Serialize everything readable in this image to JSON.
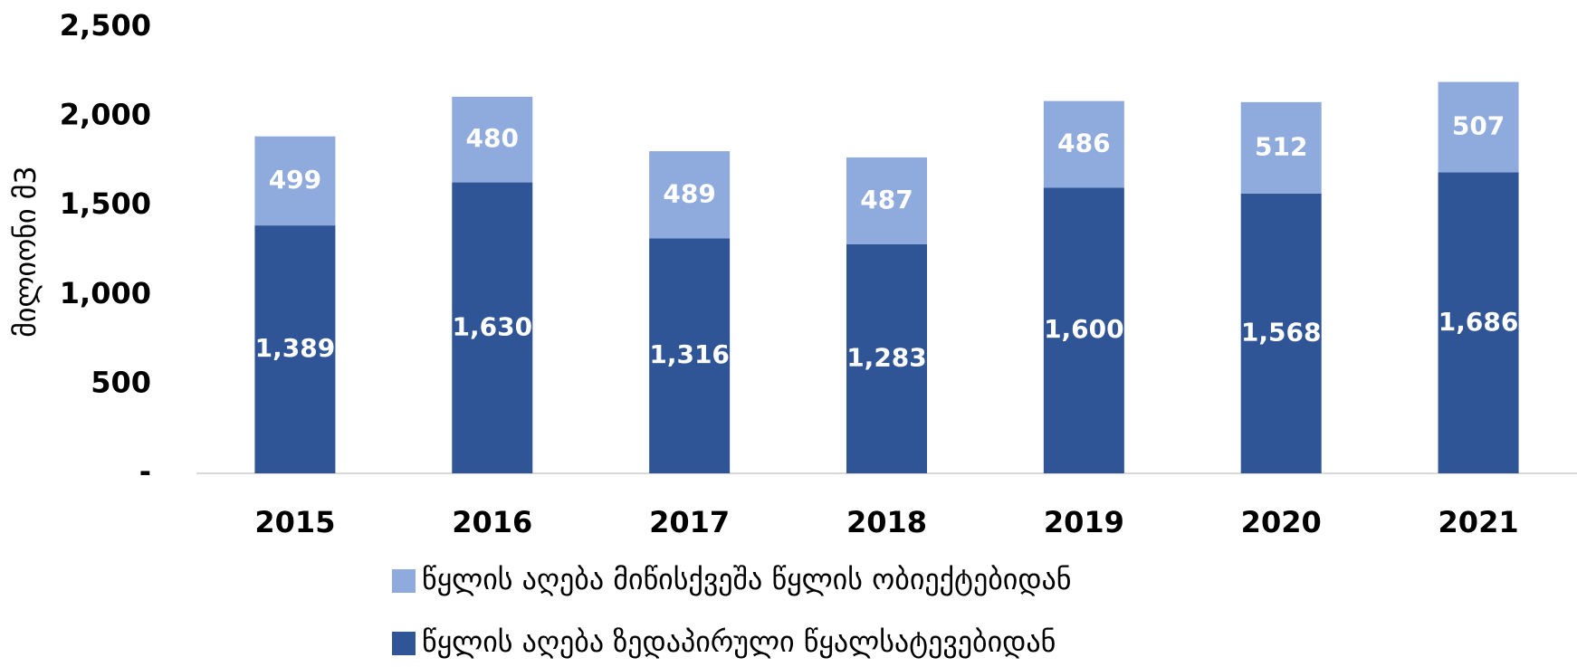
{
  "chart_data": {
    "type": "stacked_bar",
    "y_label": "მილიონი მ3",
    "categories": [
      "2015",
      "2016",
      "2017",
      "2018",
      "2019",
      "2020",
      "2021"
    ],
    "series": [
      {
        "name": "წყლის აღება ზედაპირული წყალსატევებიდან",
        "color": "#2f5597",
        "values": [
          1389,
          1630,
          1316,
          1283,
          1600,
          1568,
          1686
        ],
        "value_labels": [
          "1,389",
          "1,630",
          "1,316",
          "1,283",
          "1,600",
          "1,568",
          "1,686"
        ]
      },
      {
        "name": "წყლის აღება მიწისქვეშა წყლის ობიექტებიდან",
        "color": "#8faadc",
        "values": [
          499,
          480,
          489,
          487,
          486,
          512,
          507
        ]
      }
    ],
    "ylim": [
      0,
      2500
    ],
    "yticks": [
      {
        "value": 0,
        "label": "-"
      },
      500,
      {
        "value": 1000,
        "label": "1,000"
      },
      {
        "value": 1500,
        "label": "1,500"
      },
      {
        "value": 2000,
        "label": "2,000"
      },
      {
        "value": 2500,
        "label": "2,500"
      }
    ],
    "grid": false,
    "legend": "bottom"
  }
}
